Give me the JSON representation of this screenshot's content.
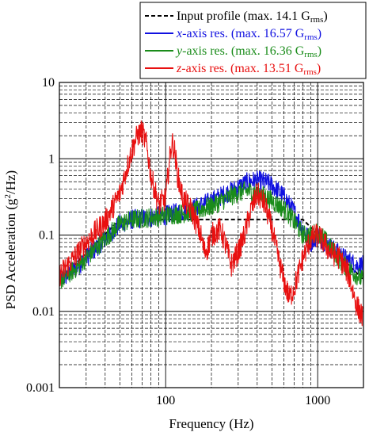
{
  "chart_data": {
    "type": "line",
    "x_scale": "log",
    "y_scale": "log",
    "xlim": [
      20,
      2000
    ],
    "ylim": [
      0.001,
      10
    ],
    "xlabel": "Frequency (Hz)",
    "ylabel_parts": {
      "before": "PSD Acceleration (g",
      "sup": "2",
      "after": "/Hz)"
    },
    "x_ticks": [
      {
        "value": 100,
        "label": "100"
      },
      {
        "value": 1000,
        "label": "1000"
      }
    ],
    "y_ticks": [
      {
        "value": 0.001,
        "label": "0.001"
      },
      {
        "value": 0.01,
        "label": "0.01"
      },
      {
        "value": 0.1,
        "label": "0.1"
      },
      {
        "value": 1,
        "label": "1"
      },
      {
        "value": 10,
        "label": "10"
      }
    ],
    "grid": true,
    "legend_position": "top-right",
    "legend": [
      {
        "prefix": "Input profile (max. 14.1 G",
        "italic": "",
        "sub": "rms",
        "suffix": ")",
        "color": "#000000",
        "dash": "5,3"
      },
      {
        "prefix": "",
        "italic": "x",
        "text": "-axis res. (max. 16.57 G",
        "sub": "rms",
        "suffix": ")",
        "color": "#1010e0",
        "dash": ""
      },
      {
        "prefix": "",
        "italic": "y",
        "text": "-axis res. (max. 16.36 G",
        "sub": "rms",
        "suffix": ")",
        "color": "#1a8c1a",
        "dash": ""
      },
      {
        "prefix": "",
        "italic": "z",
        "text": "-axis res. (max. 13.51 G",
        "sub": "rms",
        "suffix": ")",
        "color": "#e81010",
        "dash": ""
      }
    ],
    "series": [
      {
        "name": "Input profile",
        "color": "#000000",
        "dash": "5,3",
        "noise": 0,
        "x": [
          20,
          50,
          800,
          2000
        ],
        "y": [
          0.026,
          0.16,
          0.16,
          0.026
        ]
      },
      {
        "name": "x-axis res.",
        "color": "#1010e0",
        "dash": "",
        "noise": 0.13,
        "x": [
          20,
          25,
          30,
          40,
          50,
          60,
          80,
          100,
          150,
          200,
          250,
          300,
          350,
          400,
          450,
          500,
          600,
          700,
          800,
          900,
          1000,
          1200,
          1500,
          1800,
          2000
        ],
        "y": [
          0.025,
          0.035,
          0.05,
          0.09,
          0.14,
          0.16,
          0.17,
          0.18,
          0.22,
          0.28,
          0.35,
          0.42,
          0.5,
          0.52,
          0.5,
          0.45,
          0.32,
          0.2,
          0.12,
          0.08,
          0.1,
          0.07,
          0.05,
          0.04,
          0.04
        ]
      },
      {
        "name": "y-axis res.",
        "color": "#1a8c1a",
        "dash": "",
        "noise": 0.13,
        "x": [
          20,
          25,
          30,
          40,
          50,
          60,
          80,
          100,
          150,
          200,
          250,
          300,
          350,
          400,
          450,
          500,
          600,
          700,
          800,
          900,
          1000,
          1100,
          1200,
          1500,
          1800,
          2000
        ],
        "y": [
          0.025,
          0.035,
          0.05,
          0.09,
          0.14,
          0.16,
          0.17,
          0.18,
          0.2,
          0.24,
          0.3,
          0.36,
          0.38,
          0.36,
          0.32,
          0.28,
          0.22,
          0.15,
          0.1,
          0.1,
          0.11,
          0.09,
          0.07,
          0.04,
          0.03,
          0.025
        ]
      },
      {
        "name": "z-axis res.",
        "color": "#e81010",
        "dash": "",
        "noise": 0.16,
        "x": [
          20,
          25,
          30,
          40,
          50,
          55,
          60,
          65,
          70,
          75,
          80,
          90,
          100,
          105,
          110,
          115,
          120,
          130,
          150,
          170,
          180,
          190,
          200,
          230,
          250,
          270,
          300,
          330,
          360,
          400,
          450,
          500,
          550,
          600,
          650,
          700,
          800,
          900,
          1000,
          1100,
          1200,
          1400,
          1600,
          1800,
          2000
        ],
        "y": [
          0.03,
          0.05,
          0.08,
          0.15,
          0.35,
          0.7,
          1.3,
          2.0,
          2.3,
          1.5,
          0.6,
          0.25,
          0.3,
          0.8,
          1.7,
          1.2,
          0.6,
          0.3,
          0.2,
          0.1,
          0.06,
          0.07,
          0.1,
          0.12,
          0.07,
          0.04,
          0.06,
          0.1,
          0.2,
          0.35,
          0.25,
          0.12,
          0.05,
          0.025,
          0.015,
          0.02,
          0.05,
          0.09,
          0.1,
          0.08,
          0.06,
          0.05,
          0.03,
          0.012,
          0.008
        ]
      }
    ]
  }
}
